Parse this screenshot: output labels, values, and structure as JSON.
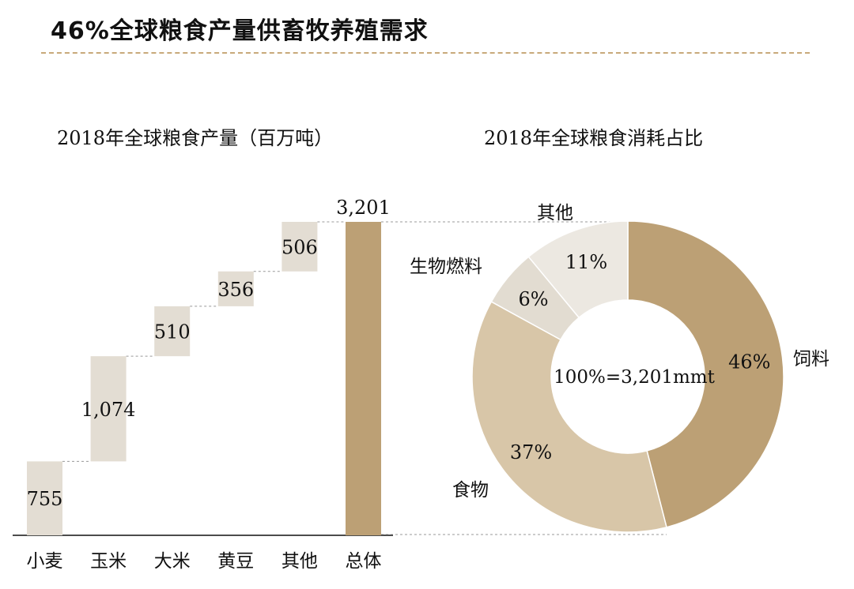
{
  "page": {
    "title": "46%全球粮食产量供畜牧养殖需求"
  },
  "colors": {
    "step": "#e3ddd3",
    "total": "#bca075",
    "rule": "#c8a97a",
    "connector": "#999999"
  },
  "chart_data": [
    {
      "type": "bar",
      "subtype": "waterfall",
      "title": "2018年全球粮食产量（百万吨）",
      "categories": [
        "小麦",
        "玉米",
        "大米",
        "黄豆",
        "其他",
        "总体"
      ],
      "values": [
        755,
        1074,
        510,
        356,
        506,
        3201
      ],
      "labels": [
        "755",
        "1,074",
        "510",
        "356",
        "506",
        "3,201"
      ],
      "is_total": [
        false,
        false,
        false,
        false,
        false,
        true
      ],
      "unit": "百万吨",
      "ylim": [
        0,
        3201
      ]
    },
    {
      "type": "pie",
      "subtype": "donut",
      "title": "2018年全球粮食消耗占比",
      "center_label": "100%=3,201mmt",
      "slices": [
        {
          "name": "饲料",
          "value": 46,
          "label": "46%",
          "color": "#bca075"
        },
        {
          "name": "食物",
          "value": 37,
          "label": "37%",
          "color": "#d8c6a8"
        },
        {
          "name": "生物燃料",
          "value": 6,
          "label": "6%",
          "color": "#e2dcd1"
        },
        {
          "name": "其他",
          "value": 11,
          "label": "11%",
          "color": "#ece8e1"
        }
      ]
    }
  ]
}
